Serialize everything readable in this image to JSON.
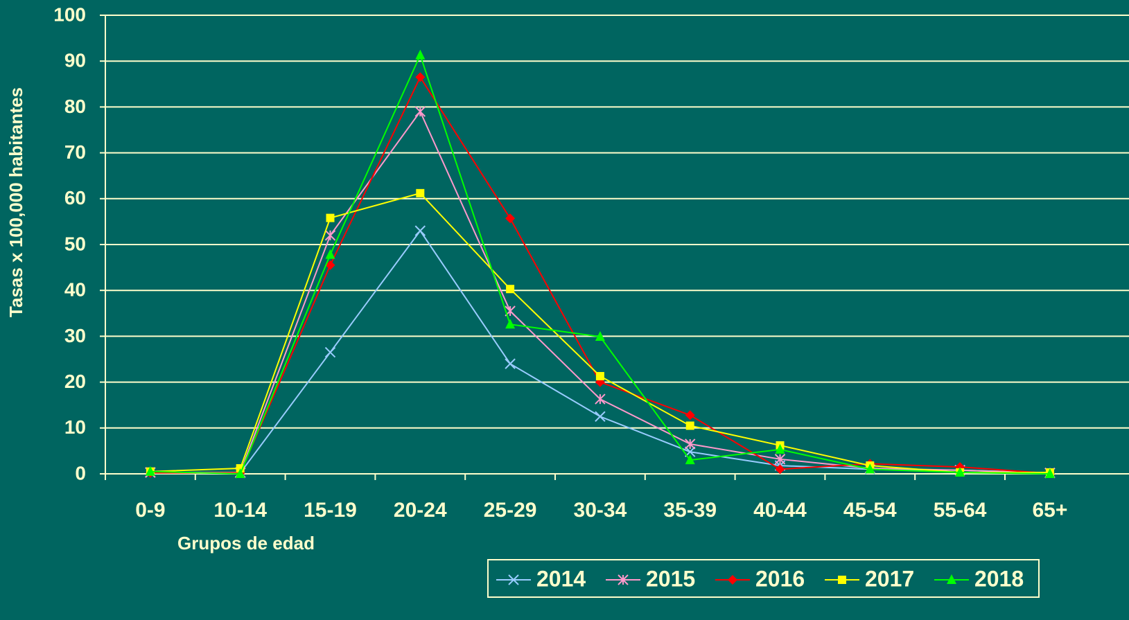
{
  "chart_data": {
    "type": "line",
    "x_label": "Grupos de edad",
    "y_label": "Tasas x 100,000 habitantes",
    "categories": [
      "0-9",
      "10-14",
      "15-19",
      "20-24",
      "25-29",
      "30-34",
      "35-39",
      "40-44",
      "45-54",
      "55-64",
      "65+"
    ],
    "series": [
      {
        "name": "2014",
        "color": "#99ccff",
        "marker": "x",
        "values": [
          0.3,
          0.2,
          26.5,
          53,
          24,
          12.5,
          4.8,
          1.8,
          1,
          0.8,
          0.2
        ]
      },
      {
        "name": "2015",
        "color": "#ff99cc",
        "marker": "star",
        "values": [
          0.3,
          0.3,
          52,
          79,
          35.5,
          16.3,
          6.5,
          3.2,
          1.2,
          0.8,
          0.2
        ]
      },
      {
        "name": "2016",
        "color": "#ff0000",
        "marker": "diamond",
        "values": [
          0.2,
          0.2,
          45.5,
          86.5,
          55.7,
          20,
          12.8,
          1,
          2.2,
          1.5,
          0.1
        ]
      },
      {
        "name": "2017",
        "color": "#ffff00",
        "marker": "square",
        "values": [
          0.5,
          1.2,
          55.8,
          61.2,
          40.3,
          21.3,
          10.5,
          6.2,
          1.8,
          0.3,
          0.3
        ]
      },
      {
        "name": "2018",
        "color": "#00ff00",
        "marker": "triangle",
        "values": [
          0.5,
          0,
          47.8,
          91.3,
          32.6,
          29.9,
          3,
          5.3,
          1,
          0.3,
          0
        ]
      }
    ],
    "ylim": [
      0,
      100
    ],
    "yticks": [
      0,
      10,
      20,
      30,
      40,
      50,
      60,
      70,
      80,
      90,
      100
    ],
    "grid": true
  }
}
